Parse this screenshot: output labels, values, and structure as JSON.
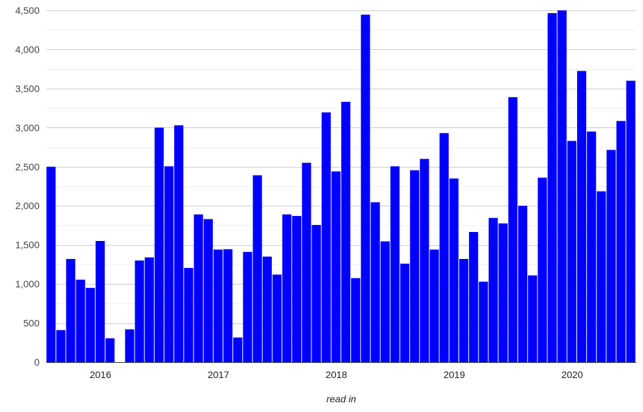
{
  "chart_data": {
    "type": "bar",
    "title": "",
    "xlabel": "read in",
    "ylabel": "",
    "ylim": [
      0,
      4500
    ],
    "yticks": [
      0,
      500,
      1000,
      1500,
      2000,
      2500,
      3000,
      3500,
      4000,
      4500
    ],
    "ytick_labels": [
      "0",
      "500",
      "1,000",
      "1,500",
      "2,000",
      "2,500",
      "3,000",
      "3,500",
      "4,000",
      "4,500"
    ],
    "grid": true,
    "minor_grid": true,
    "legend": "none",
    "bar_color": "#0000ff",
    "x_year_labels": [
      "2016",
      "2017",
      "2018",
      "2019",
      "2020"
    ],
    "categories": [
      "2015-08",
      "2015-09",
      "2015-10",
      "2015-11",
      "2015-12",
      "2016-01",
      "2016-02",
      "2016-03",
      "2016-04",
      "2016-05",
      "2016-06",
      "2016-07",
      "2016-08",
      "2016-09",
      "2016-10",
      "2016-11",
      "2016-12",
      "2017-01",
      "2017-02",
      "2017-03",
      "2017-04",
      "2017-05",
      "2017-06",
      "2017-07",
      "2017-08",
      "2017-09",
      "2017-10",
      "2017-11",
      "2017-12",
      "2018-01",
      "2018-02",
      "2018-03",
      "2018-04",
      "2018-05",
      "2018-06",
      "2018-07",
      "2018-08",
      "2018-09",
      "2018-10",
      "2018-11",
      "2018-12",
      "2019-01",
      "2019-02",
      "2019-03",
      "2019-04",
      "2019-05",
      "2019-06",
      "2019-07",
      "2019-08",
      "2019-09",
      "2019-10",
      "2019-11",
      "2019-12",
      "2020-01",
      "2020-02",
      "2020-03",
      "2020-04",
      "2020-05",
      "2020-06",
      "2020-07"
    ],
    "values": [
      2500,
      410,
      1320,
      1055,
      950,
      1550,
      305,
      0,
      420,
      1300,
      1340,
      3000,
      2505,
      3030,
      1205,
      1890,
      1830,
      1440,
      1445,
      315,
      1410,
      2390,
      1350,
      1120,
      1890,
      1870,
      2550,
      1755,
      3195,
      2440,
      3330,
      1075,
      4445,
      2045,
      1545,
      2505,
      1260,
      2455,
      2600,
      1440,
      2930,
      2350,
      1320,
      1665,
      1030,
      1845,
      1775,
      3390,
      2000,
      1110,
      2360,
      4465,
      4500,
      2830,
      3725,
      2950,
      2185,
      2715,
      3085,
      3600
    ]
  }
}
